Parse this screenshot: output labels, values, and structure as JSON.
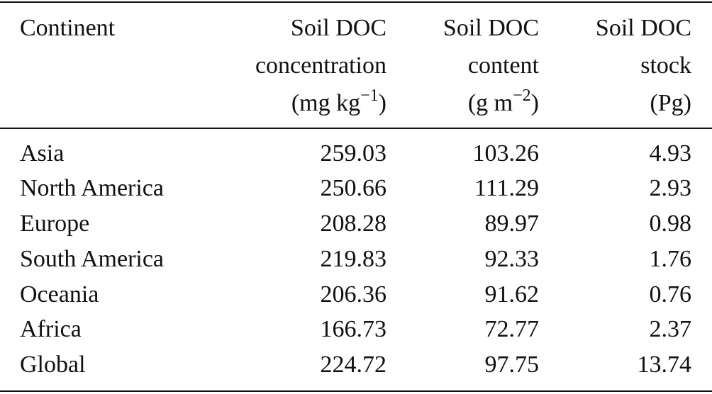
{
  "table": {
    "header": {
      "col0": "Continent",
      "col1": [
        "Soil DOC",
        "concentration"
      ],
      "col1_unit": {
        "base": "(mg kg",
        "exp": "−1",
        "close": ")"
      },
      "col2": [
        "Soil DOC",
        "content"
      ],
      "col2_unit": {
        "base": "(g m",
        "exp": "−2",
        "close": ")"
      },
      "col3": [
        "Soil DOC",
        "stock"
      ],
      "col3_unit": "(Pg)"
    },
    "rows": [
      {
        "continent": "Asia",
        "concentration": "259.03",
        "content": "103.26",
        "stock": "4.93"
      },
      {
        "continent": "North America",
        "concentration": "250.66",
        "content": "111.29",
        "stock": "2.93"
      },
      {
        "continent": "Europe",
        "concentration": "208.28",
        "content": "89.97",
        "stock": "0.98"
      },
      {
        "continent": "South America",
        "concentration": "219.83",
        "content": "92.33",
        "stock": "1.76"
      },
      {
        "continent": "Oceania",
        "concentration": "206.36",
        "content": "91.62",
        "stock": "0.76"
      },
      {
        "continent": "Africa",
        "concentration": "166.73",
        "content": "72.77",
        "stock": "2.37"
      },
      {
        "continent": "Global",
        "concentration": "224.72",
        "content": "97.75",
        "stock": "13.74"
      }
    ]
  }
}
